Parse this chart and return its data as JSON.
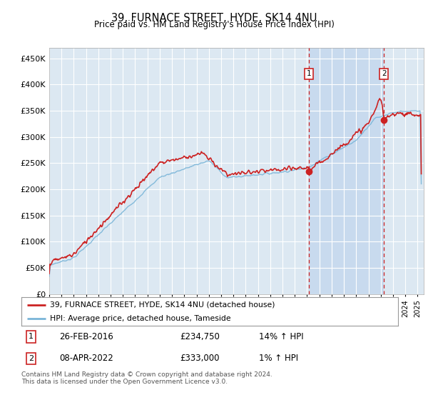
{
  "title": "39, FURNACE STREET, HYDE, SK14 4NU",
  "subtitle": "Price paid vs. HM Land Registry's House Price Index (HPI)",
  "footer": "Contains HM Land Registry data © Crown copyright and database right 2024.\nThis data is licensed under the Open Government Licence v3.0.",
  "legend_line1": "39, FURNACE STREET, HYDE, SK14 4NU (detached house)",
  "legend_line2": "HPI: Average price, detached house, Tameside",
  "sale1_label": "1",
  "sale1_date": "26-FEB-2016",
  "sale1_price": "£234,750",
  "sale1_hpi": "14% ↑ HPI",
  "sale2_label": "2",
  "sale2_date": "08-APR-2022",
  "sale2_price": "£333,000",
  "sale2_hpi": "1% ↑ HPI",
  "hpi_color": "#7ab5d8",
  "price_color": "#cc2222",
  "sale_vline_color": "#cc2222",
  "background_plot": "#dce8f2",
  "background_highlight": "#c8daee",
  "grid_color": "#ffffff",
  "ylim": [
    0,
    470000
  ],
  "yticks": [
    0,
    50000,
    100000,
    150000,
    200000,
    250000,
    300000,
    350000,
    400000,
    450000
  ],
  "sale1_x": 2016.15,
  "sale2_x": 2022.27,
  "sale1_y": 234750,
  "sale2_y": 333000,
  "xmin": 1995,
  "xmax": 2025.5
}
